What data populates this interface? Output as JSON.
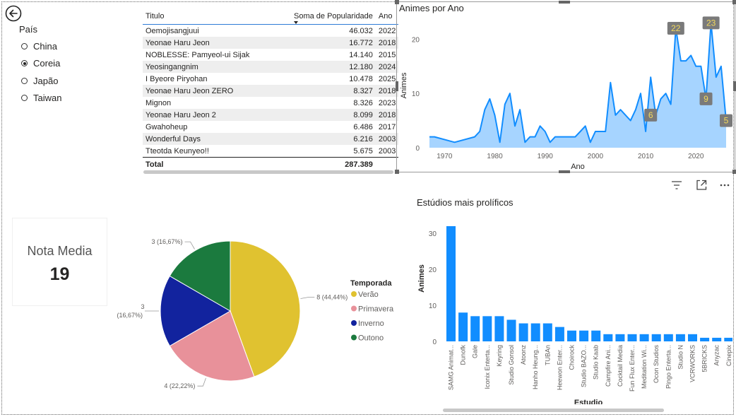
{
  "slicer": {
    "title": "País",
    "options": [
      {
        "label": "China",
        "selected": false
      },
      {
        "label": "Coreia",
        "selected": true
      },
      {
        "label": "Japão",
        "selected": false
      },
      {
        "label": "Taiwan",
        "selected": false
      }
    ]
  },
  "table": {
    "headers": {
      "title": "Titulo",
      "popularity": "Soma de Popularidade",
      "year": "Ano"
    },
    "rows": [
      {
        "title": "Oemojisangjuui",
        "popularity": "46.032",
        "year": "2022"
      },
      {
        "title": "Yeonae Haru Jeon",
        "popularity": "16.772",
        "year": "2018"
      },
      {
        "title": "NOBLESSE: Pamyeol-ui Sijak",
        "popularity": "14.140",
        "year": "2015"
      },
      {
        "title": "Yeosingangnim",
        "popularity": "12.180",
        "year": "2024"
      },
      {
        "title": "I Byeore Piryohan",
        "popularity": "10.478",
        "year": "2025"
      },
      {
        "title": "Yeonae Haru Jeon ZERO",
        "popularity": "8.327",
        "year": "2018"
      },
      {
        "title": "Mignon",
        "popularity": "8.326",
        "year": "2023"
      },
      {
        "title": "Yeonae Haru Jeon 2",
        "popularity": "8.099",
        "year": "2018"
      },
      {
        "title": "Gwahoheup",
        "popularity": "6.486",
        "year": "2017"
      },
      {
        "title": "Wonderful Days",
        "popularity": "6.216",
        "year": "2003"
      },
      {
        "title": "Tteotda Keunyeo!!",
        "popularity": "5.675",
        "year": "2003"
      }
    ],
    "total_label": "Total",
    "total_value": "287.389"
  },
  "kpi": {
    "label": "Nota Media",
    "value": "19"
  },
  "toolbar": {
    "filter_icon": "filter-icon",
    "focus_icon": "focus-mode-icon",
    "more_icon": "more-options-icon"
  },
  "chart_data": [
    {
      "type": "area",
      "title": "Animes por Ano",
      "xlabel": "Ano",
      "ylabel": "Animes",
      "xlim": [
        1967,
        2026
      ],
      "ylim": [
        0,
        25
      ],
      "xticks": [
        "1970",
        "1980",
        "1990",
        "2000",
        "2010",
        "2020"
      ],
      "yticks": [
        "0",
        "10",
        "20"
      ],
      "color": "#118dff",
      "fill": "#a6d4ff",
      "x": [
        1967,
        1968,
        1972,
        1976,
        1977,
        1978,
        1979,
        1980,
        1981,
        1982,
        1983,
        1984,
        1985,
        1986,
        1987,
        1988,
        1989,
        1990,
        1991,
        1992,
        1993,
        1994,
        1995,
        1996,
        1997,
        1998,
        1999,
        2000,
        2001,
        2002,
        2003,
        2004,
        2005,
        2006,
        2007,
        2008,
        2009,
        2010,
        2011,
        2012,
        2013,
        2014,
        2015,
        2016,
        2017,
        2018,
        2019,
        2020,
        2021,
        2022,
        2023,
        2024,
        2025,
        2026
      ],
      "y": [
        2,
        2,
        1,
        2,
        3,
        7,
        9,
        6,
        1,
        8,
        10,
        4,
        7,
        1,
        2,
        2,
        4,
        3,
        1,
        2,
        2,
        2,
        2,
        2,
        3,
        4,
        1,
        3,
        3,
        3,
        12,
        6,
        7,
        6,
        5,
        7,
        10,
        3,
        13,
        6,
        9,
        10,
        8,
        22,
        16,
        16,
        17,
        15,
        15,
        9,
        23,
        13,
        15,
        5
      ],
      "annotations": [
        {
          "x": 2011,
          "y": 6,
          "label": "6"
        },
        {
          "x": 2016,
          "y": 22,
          "label": "22"
        },
        {
          "x": 2022,
          "y": 9,
          "label": "9"
        },
        {
          "x": 2023,
          "y": 23,
          "label": "23"
        },
        {
          "x": 2026,
          "y": 5,
          "label": "5"
        }
      ]
    },
    {
      "type": "pie",
      "legend_title": "Temporada",
      "slices": [
        {
          "name": "Verão",
          "value": 8,
          "label": "8 (44,44%)",
          "color": "#e0c230"
        },
        {
          "name": "Primavera",
          "value": 4,
          "label": "4 (22,22%)",
          "color": "#e8919a"
        },
        {
          "name": "Inverno",
          "value": 3,
          "label_top": "3",
          "label_bottom": "(16,67%)",
          "color": "#12239e"
        },
        {
          "name": "Outono",
          "value": 3,
          "label": "3 (16,67%)",
          "color": "#1b7a3e"
        }
      ]
    },
    {
      "type": "bar",
      "title": "Estúdios mais prolíficos",
      "xlabel": "Estudio",
      "ylabel": "Animes",
      "ylim": [
        0,
        32
      ],
      "yticks": [
        "0",
        "10",
        "20",
        "30"
      ],
      "color": "#118dff",
      "categories": [
        "SAMG Animat...",
        "Dunofk",
        "Gale",
        "Iconix Enterta...",
        "Keyring",
        "Studio Gonsol",
        "Atoonz",
        "Hanho Heung...",
        "TUBAn",
        "Heewon Enter...",
        "Choirock",
        "Studio BAZO...",
        "Studio Kaab",
        "Campfire Ani...",
        "Cocktail Media",
        "Fun Flux Enter...",
        "Meditation Wi...",
        "Ocon Studios",
        "Pingo Enterta...",
        "Studio N",
        "VCRWORKS",
        "5BRICKS",
        "Anyzac",
        "Cinepix"
      ],
      "values": [
        32,
        8,
        7,
        7,
        7,
        6,
        5,
        5,
        5,
        4,
        3,
        3,
        3,
        2,
        2,
        2,
        2,
        2,
        2,
        2,
        2,
        1,
        1,
        1
      ]
    }
  ]
}
